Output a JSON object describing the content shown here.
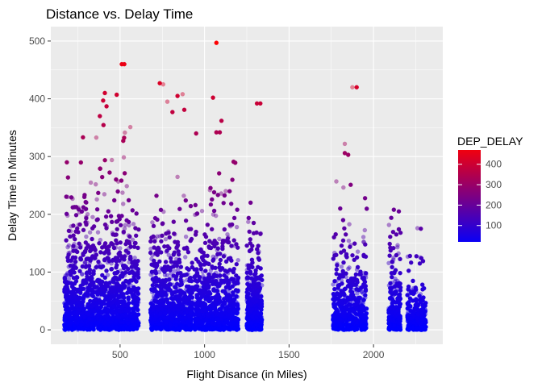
{
  "chart_data": {
    "type": "scatter",
    "title": "Distance vs. Delay Time",
    "xlabel": "Flight Disance (in Miles)",
    "ylabel": "Delay Time in Minutes",
    "xlim": [
      90,
      2410
    ],
    "ylim": [
      -25,
      525
    ],
    "x_ticks": [
      500,
      1000,
      1500,
      2000
    ],
    "y_ticks": [
      0,
      100,
      200,
      300,
      400,
      500
    ],
    "grid": true,
    "panel_background": "#ebebeb",
    "color_scale": {
      "variable": "DEP_DELAY",
      "low_color": "#0000ff",
      "high_color": "#ff0000",
      "range": [
        0,
        500
      ],
      "breaks": [
        100,
        200,
        300,
        400
      ],
      "legend_position": "right"
    },
    "clusters": [
      {
        "x_range": [
          170,
          610
        ],
        "density": 1.0,
        "max_delay": 410
      },
      {
        "x_range": [
          680,
          930
        ],
        "density": 0.6,
        "max_delay": 330
      },
      {
        "x_range": [
          940,
          1200
        ],
        "density": 0.55,
        "max_delay": 345
      },
      {
        "x_range": [
          1250,
          1340
        ],
        "density": 0.3,
        "max_delay": 290
      },
      {
        "x_range": [
          1760,
          1960
        ],
        "density": 0.35,
        "max_delay": 305
      },
      {
        "x_range": [
          2090,
          2160
        ],
        "density": 0.2,
        "max_delay": 210
      },
      {
        "x_range": [
          2200,
          2310
        ],
        "density": 0.2,
        "max_delay": 175
      }
    ],
    "points": [
      {
        "x": 1070,
        "y": 497
      },
      {
        "x": 510,
        "y": 460
      },
      {
        "x": 525,
        "y": 460
      },
      {
        "x": 735,
        "y": 427
      },
      {
        "x": 755,
        "y": 425
      },
      {
        "x": 1875,
        "y": 420
      },
      {
        "x": 1900,
        "y": 420
      },
      {
        "x": 410,
        "y": 410
      },
      {
        "x": 870,
        "y": 408
      },
      {
        "x": 840,
        "y": 405
      },
      {
        "x": 1050,
        "y": 402
      },
      {
        "x": 480,
        "y": 407
      },
      {
        "x": 780,
        "y": 395
      },
      {
        "x": 1310,
        "y": 392
      },
      {
        "x": 1330,
        "y": 392
      },
      {
        "x": 400,
        "y": 397
      },
      {
        "x": 420,
        "y": 387
      },
      {
        "x": 880,
        "y": 381
      },
      {
        "x": 810,
        "y": 377
      },
      {
        "x": 380,
        "y": 370
      },
      {
        "x": 1100,
        "y": 362
      },
      {
        "x": 1070,
        "y": 342
      },
      {
        "x": 1090,
        "y": 342
      },
      {
        "x": 1830,
        "y": 322
      },
      {
        "x": 185,
        "y": 290
      },
      {
        "x": 1780,
        "y": 257
      },
      {
        "x": 1950,
        "y": 228
      },
      {
        "x": 2120,
        "y": 208
      },
      {
        "x": 2150,
        "y": 205
      },
      {
        "x": 2160,
        "y": 168
      },
      {
        "x": 2280,
        "y": 175
      },
      {
        "x": 2260,
        "y": 176
      },
      {
        "x": 190,
        "y": 230
      },
      {
        "x": 220,
        "y": 212
      },
      {
        "x": 2110,
        "y": 118
      },
      {
        "x": 1830,
        "y": 306
      },
      {
        "x": 1850,
        "y": 303
      },
      {
        "x": 1820,
        "y": 190
      },
      {
        "x": 950,
        "y": 340
      }
    ]
  }
}
